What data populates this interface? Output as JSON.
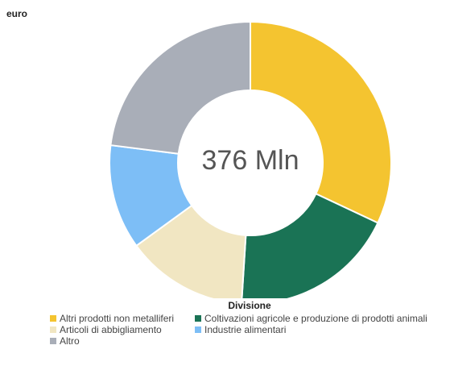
{
  "unit_label": "euro",
  "chart_data": {
    "type": "pie",
    "donut": true,
    "center_label": "376 Mln",
    "total": 376,
    "unit": "Mln euro",
    "legend_title": "Divisione",
    "legend_position": "bottom",
    "slices": [
      {
        "name": "Altri prodotti non metalliferi",
        "value": 32,
        "color": "#F4C430"
      },
      {
        "name": "Coltivazioni agricole e produzione di prodotti animali",
        "value": 19,
        "color": "#1A7355"
      },
      {
        "name": "Articoli di abbigliamento",
        "value": 14,
        "color": "#F1E6C2"
      },
      {
        "name": "Industrie alimentari",
        "value": 12,
        "color": "#7DBEF6"
      },
      {
        "name": "Altro",
        "value": 23,
        "color": "#A9AEB8"
      }
    ]
  }
}
